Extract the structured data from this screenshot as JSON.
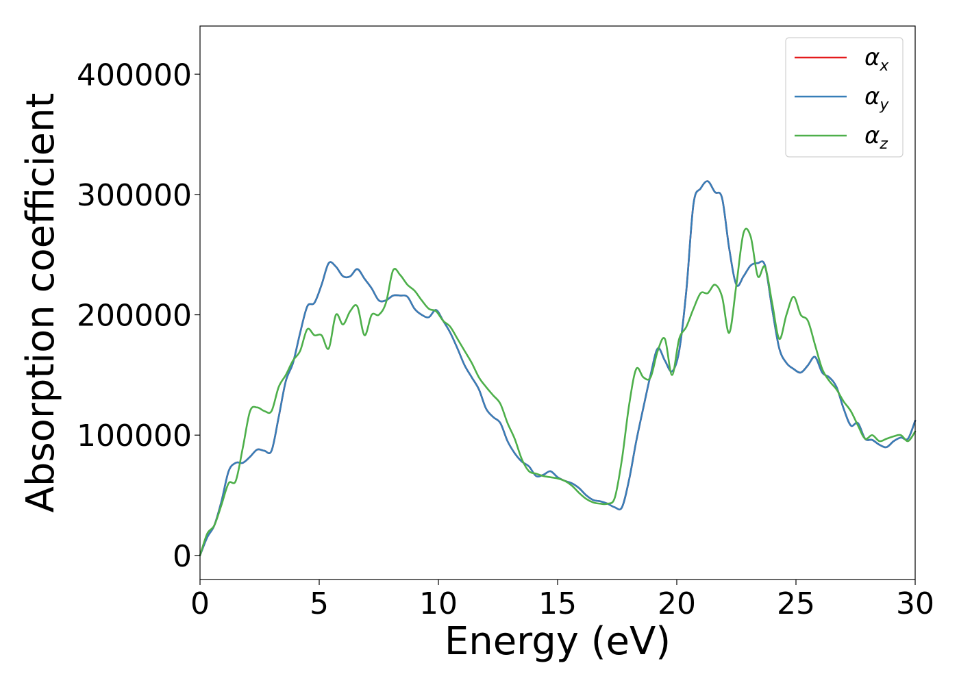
{
  "chart_data": {
    "type": "line",
    "xlabel": "Energy (eV)",
    "ylabel": "Absorption coefficient",
    "xlim": [
      0,
      30
    ],
    "ylim": [
      -20000,
      440000
    ],
    "xticks": [
      0,
      5,
      10,
      15,
      20,
      25,
      30
    ],
    "yticks": [
      0,
      100000,
      200000,
      300000,
      400000
    ],
    "grid": false,
    "legend_position": "top-right",
    "series": [
      {
        "name": "αx",
        "symbol": "α",
        "subscript": "x",
        "color": "#e41a1c",
        "x": [
          0,
          0.3,
          0.6,
          0.9,
          1.2,
          1.5,
          1.8,
          2.1,
          2.4,
          2.7,
          3.0,
          3.3,
          3.6,
          3.9,
          4.2,
          4.5,
          4.8,
          5.1,
          5.4,
          5.7,
          6.0,
          6.3,
          6.6,
          6.9,
          7.2,
          7.5,
          7.8,
          8.1,
          8.4,
          8.7,
          9.0,
          9.3,
          9.6,
          9.9,
          10.2,
          10.5,
          10.8,
          11.1,
          11.4,
          11.7,
          12.0,
          12.3,
          12.6,
          12.9,
          13.2,
          13.5,
          13.8,
          14.1,
          14.4,
          14.7,
          15.0,
          15.3,
          15.6,
          15.9,
          16.2,
          16.5,
          16.8,
          17.1,
          17.4,
          17.7,
          18.0,
          18.3,
          18.6,
          18.9,
          19.2,
          19.5,
          19.8,
          20.1,
          20.4,
          20.7,
          21.0,
          21.3,
          21.6,
          21.9,
          22.2,
          22.5,
          22.8,
          23.1,
          23.4,
          23.7,
          24.0,
          24.3,
          24.6,
          24.9,
          25.2,
          25.5,
          25.8,
          26.1,
          26.4,
          26.7,
          27.0,
          27.3,
          27.6,
          27.9,
          28.2,
          28.5,
          28.8,
          29.1,
          29.4,
          29.7,
          30.0
        ],
        "values": [
          0,
          15000,
          25000,
          45000,
          70000,
          77000,
          77000,
          82000,
          88000,
          87000,
          87000,
          115000,
          145000,
          160000,
          185000,
          207000,
          210000,
          225000,
          243000,
          240000,
          232000,
          232000,
          238000,
          230000,
          222000,
          212000,
          212000,
          216000,
          216000,
          215000,
          205000,
          200000,
          198000,
          204000,
          195000,
          185000,
          172000,
          158000,
          148000,
          138000,
          122000,
          115000,
          110000,
          95000,
          85000,
          78000,
          74000,
          66000,
          67000,
          70000,
          65000,
          62000,
          60000,
          56000,
          50000,
          46000,
          45000,
          43000,
          40000,
          40000,
          63000,
          95000,
          123000,
          150000,
          172000,
          162000,
          153000,
          170000,
          220000,
          292000,
          305000,
          311000,
          302000,
          297000,
          255000,
          225000,
          232000,
          241000,
          243000,
          241000,
          205000,
          172000,
          160000,
          155000,
          152000,
          158000,
          165000,
          152000,
          148000,
          140000,
          122000,
          108000,
          110000,
          97000,
          96000,
          92000,
          90000,
          95000,
          98000,
          97000,
          112000
        ]
      },
      {
        "name": "αy",
        "symbol": "α",
        "subscript": "y",
        "color": "#377eb8",
        "x": [
          0,
          0.3,
          0.6,
          0.9,
          1.2,
          1.5,
          1.8,
          2.1,
          2.4,
          2.7,
          3.0,
          3.3,
          3.6,
          3.9,
          4.2,
          4.5,
          4.8,
          5.1,
          5.4,
          5.7,
          6.0,
          6.3,
          6.6,
          6.9,
          7.2,
          7.5,
          7.8,
          8.1,
          8.4,
          8.7,
          9.0,
          9.3,
          9.6,
          9.9,
          10.2,
          10.5,
          10.8,
          11.1,
          11.4,
          11.7,
          12.0,
          12.3,
          12.6,
          12.9,
          13.2,
          13.5,
          13.8,
          14.1,
          14.4,
          14.7,
          15.0,
          15.3,
          15.6,
          15.9,
          16.2,
          16.5,
          16.8,
          17.1,
          17.4,
          17.7,
          18.0,
          18.3,
          18.6,
          18.9,
          19.2,
          19.5,
          19.8,
          20.1,
          20.4,
          20.7,
          21.0,
          21.3,
          21.6,
          21.9,
          22.2,
          22.5,
          22.8,
          23.1,
          23.4,
          23.7,
          24.0,
          24.3,
          24.6,
          24.9,
          25.2,
          25.5,
          25.8,
          26.1,
          26.4,
          26.7,
          27.0,
          27.3,
          27.6,
          27.9,
          28.2,
          28.5,
          28.8,
          29.1,
          29.4,
          29.7,
          30.0
        ],
        "values": [
          0,
          15000,
          25000,
          45000,
          70000,
          77000,
          77000,
          82000,
          88000,
          87000,
          87000,
          115000,
          145000,
          160000,
          185000,
          207000,
          210000,
          225000,
          243000,
          240000,
          232000,
          232000,
          238000,
          230000,
          222000,
          212000,
          212000,
          216000,
          216000,
          215000,
          205000,
          200000,
          198000,
          204000,
          195000,
          185000,
          172000,
          158000,
          148000,
          138000,
          122000,
          115000,
          110000,
          95000,
          85000,
          78000,
          74000,
          66000,
          67000,
          70000,
          65000,
          62000,
          60000,
          56000,
          50000,
          46000,
          45000,
          43000,
          40000,
          40000,
          63000,
          95000,
          123000,
          150000,
          172000,
          162000,
          153000,
          170000,
          220000,
          292000,
          305000,
          311000,
          302000,
          297000,
          255000,
          225000,
          232000,
          241000,
          243000,
          241000,
          205000,
          172000,
          160000,
          155000,
          152000,
          158000,
          165000,
          152000,
          148000,
          140000,
          122000,
          108000,
          110000,
          97000,
          96000,
          92000,
          90000,
          95000,
          98000,
          97000,
          112000
        ]
      },
      {
        "name": "αz",
        "symbol": "α",
        "subscript": "z",
        "color": "#4daf4a",
        "x": [
          0,
          0.3,
          0.6,
          0.9,
          1.2,
          1.5,
          1.8,
          2.1,
          2.4,
          2.7,
          3.0,
          3.3,
          3.6,
          3.9,
          4.2,
          4.5,
          4.8,
          5.1,
          5.4,
          5.7,
          6.0,
          6.3,
          6.6,
          6.9,
          7.2,
          7.5,
          7.8,
          8.1,
          8.4,
          8.7,
          9.0,
          9.3,
          9.6,
          9.9,
          10.2,
          10.5,
          10.8,
          11.1,
          11.4,
          11.7,
          12.0,
          12.3,
          12.6,
          12.9,
          13.2,
          13.5,
          13.8,
          14.1,
          14.4,
          14.7,
          15.0,
          15.3,
          15.6,
          15.9,
          16.2,
          16.5,
          16.8,
          17.1,
          17.4,
          17.7,
          18.0,
          18.3,
          18.6,
          18.9,
          19.2,
          19.5,
          19.8,
          20.1,
          20.4,
          20.7,
          21.0,
          21.3,
          21.6,
          21.9,
          22.2,
          22.5,
          22.8,
          23.1,
          23.4,
          23.7,
          24.0,
          24.3,
          24.6,
          24.9,
          25.2,
          25.5,
          25.8,
          26.1,
          26.4,
          26.7,
          27.0,
          27.3,
          27.6,
          27.9,
          28.2,
          28.5,
          28.8,
          29.1,
          29.4,
          29.7,
          30.0
        ],
        "values": [
          0,
          18000,
          25000,
          42000,
          60000,
          62000,
          90000,
          120000,
          123000,
          120000,
          120000,
          140000,
          150000,
          162000,
          170000,
          188000,
          183000,
          183000,
          172000,
          200000,
          192000,
          203000,
          207000,
          183000,
          200000,
          200000,
          210000,
          237000,
          233000,
          225000,
          220000,
          212000,
          205000,
          203000,
          195000,
          190000,
          180000,
          170000,
          160000,
          148000,
          140000,
          133000,
          126000,
          110000,
          97000,
          80000,
          70000,
          68000,
          66000,
          65000,
          64000,
          62000,
          58000,
          52000,
          47000,
          44000,
          43000,
          43000,
          48000,
          80000,
          125000,
          155000,
          148000,
          148000,
          170000,
          180000,
          150000,
          180000,
          190000,
          205000,
          218000,
          218000,
          225000,
          215000,
          185000,
          225000,
          268000,
          265000,
          232000,
          240000,
          210000,
          180000,
          200000,
          215000,
          200000,
          195000,
          175000,
          155000,
          145000,
          138000,
          128000,
          120000,
          108000,
          97000,
          100000,
          95000,
          97000,
          99000,
          100000,
          95000,
          103000
        ]
      }
    ]
  }
}
